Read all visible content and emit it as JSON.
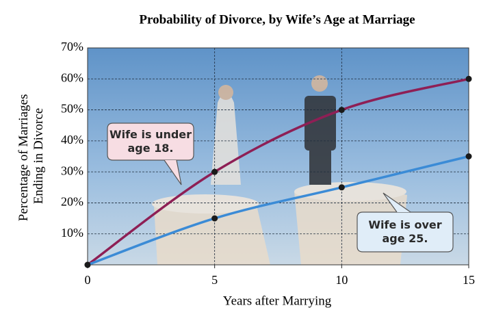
{
  "chart_data": {
    "type": "line",
    "title": "Probability of Divorce, by Wife’s Age at Marriage",
    "xlabel": "Years after Marrying",
    "ylabel": [
      "Percentage of Marriages",
      "Ending in Divorce"
    ],
    "x": [
      0,
      5,
      10,
      15
    ],
    "series": [
      {
        "color": "#8e1f55",
        "values": [
          0,
          30,
          50,
          60
        ]
      },
      {
        "color": "#3b8bd6",
        "values": [
          0,
          15,
          25,
          35
        ]
      }
    ],
    "annotations": [
      {
        "lines": [
          "Wife is under",
          "age 18."
        ],
        "color": "#f7dde3"
      },
      {
        "lines": [
          "Wife is over",
          "age 25."
        ],
        "color": "#e0edf8"
      }
    ],
    "xlim": [
      0,
      15
    ],
    "ylim": [
      0,
      70
    ],
    "xticks": [
      0,
      5,
      10,
      15
    ],
    "yticks": [
      {
        "value": 10,
        "label": "10%"
      },
      {
        "value": 20,
        "label": "20%"
      },
      {
        "value": 30,
        "label": "30%"
      },
      {
        "value": 40,
        "label": "40%"
      },
      {
        "value": 50,
        "label": "50%"
      },
      {
        "value": 60,
        "label": "60%"
      },
      {
        "value": 70,
        "label": "70%"
      }
    ],
    "grid": true
  }
}
